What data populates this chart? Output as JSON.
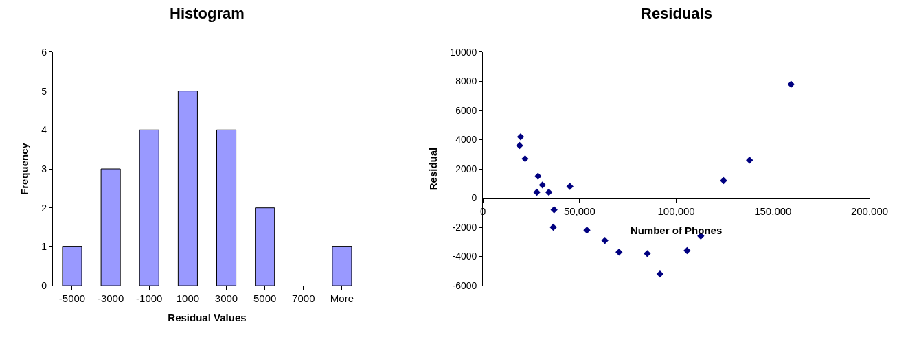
{
  "chart_data": [
    {
      "type": "bar",
      "title": "Histogram",
      "xlabel": "Residual Values",
      "ylabel": "Frequency",
      "categories": [
        "-5000",
        "-3000",
        "-1000",
        "1000",
        "3000",
        "5000",
        "7000",
        "More"
      ],
      "values": [
        1,
        3,
        4,
        5,
        4,
        2,
        0,
        1
      ],
      "color": "#9999ff",
      "ylim": [
        0,
        6
      ],
      "yticks": [
        0,
        1,
        2,
        3,
        4,
        5,
        6
      ]
    },
    {
      "type": "scatter",
      "title": "Residuals",
      "xlabel": "Number of Phones",
      "ylabel": "Residual",
      "marker": "diamond",
      "color": "#000080",
      "x": [
        19500,
        19000,
        21800,
        28500,
        30800,
        27900,
        34100,
        45000,
        36800,
        36400,
        53800,
        63100,
        70400,
        85000,
        91600,
        105600,
        112700,
        124500,
        137900,
        159400
      ],
      "values": [
        4200,
        3600,
        2700,
        1500,
        900,
        400,
        400,
        800,
        -800,
        -2000,
        -2200,
        -2900,
        -3700,
        -3800,
        -5200,
        -3600,
        -2600,
        1200,
        2600,
        7800
      ],
      "xlim": [
        0,
        200000
      ],
      "xticks": [
        {
          "value": 0,
          "label": "0"
        },
        {
          "value": 50000,
          "label": "50,000"
        },
        {
          "value": 100000,
          "label": "100,000"
        },
        {
          "value": 150000,
          "label": "150,000"
        },
        {
          "value": 200000,
          "label": "200,000"
        }
      ],
      "ylim": [
        -6000,
        10000
      ],
      "yticks": [
        -6000,
        -4000,
        -2000,
        0,
        2000,
        4000,
        6000,
        8000,
        10000
      ]
    }
  ]
}
